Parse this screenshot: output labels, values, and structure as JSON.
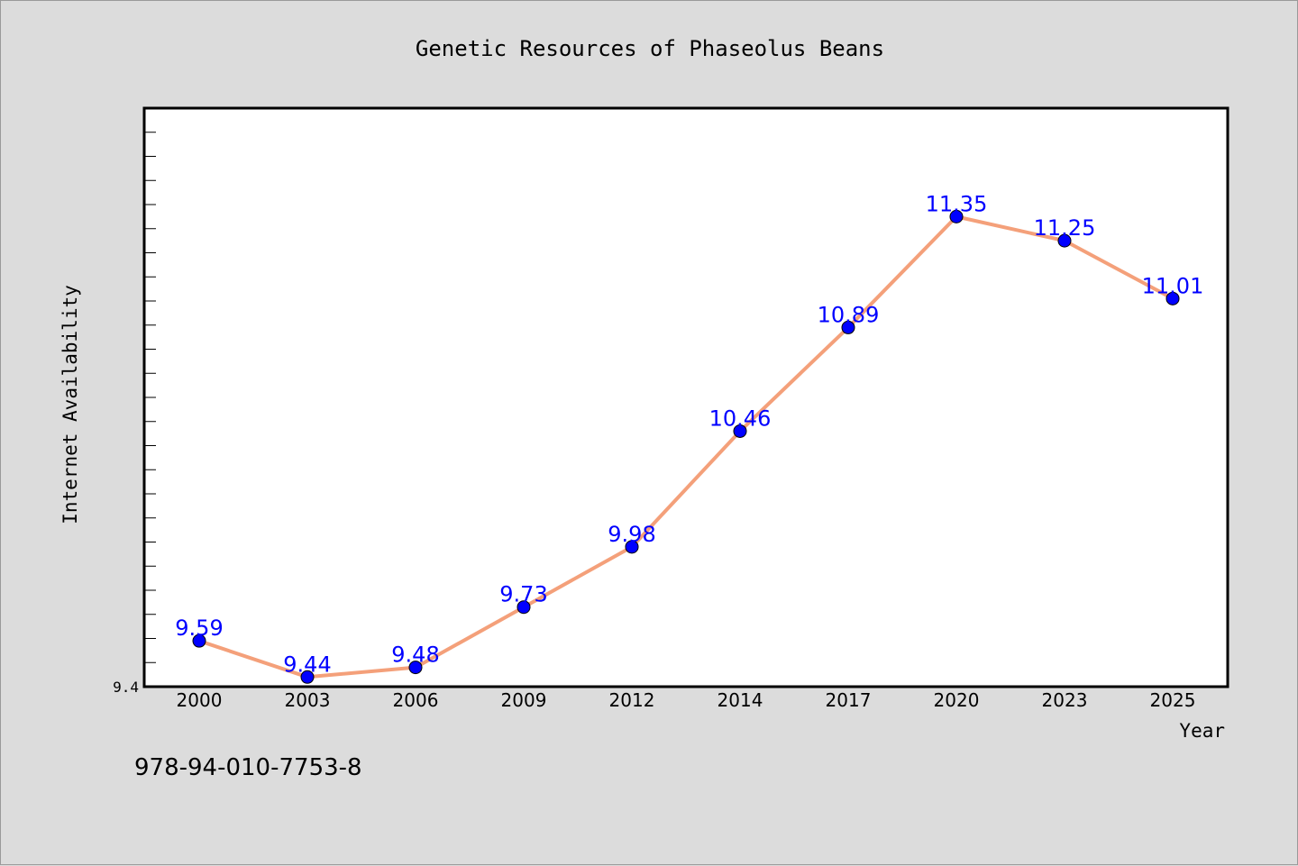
{
  "footer": {
    "isbn": "978-94-010-7753-8"
  },
  "colors": {
    "background": "#dcdcdc",
    "plot_background": "#ffffff",
    "line": "#f4a07a",
    "marker": "#0000ff",
    "data_label": "#0000ff"
  },
  "chart_data": {
    "type": "line",
    "title": "Genetic Resources of Phaseolus Beans",
    "xlabel": "Year",
    "ylabel": "Internet Availability",
    "categories": [
      "2000",
      "2003",
      "2006",
      "2009",
      "2012",
      "2014",
      "2017",
      "2020",
      "2023",
      "2025"
    ],
    "series": [
      {
        "values": [
          9.59,
          9.44,
          9.48,
          9.73,
          9.98,
          10.46,
          10.89,
          11.35,
          11.25,
          11.01
        ],
        "data_labels": [
          "9.59",
          "9.44",
          "9.48",
          "9.73",
          "9.98",
          "10.46",
          "10.89",
          "11.35",
          "11.25",
          "11.01"
        ]
      }
    ],
    "ylim": [
      9.4,
      11.8
    ],
    "y_tick_labels": [
      "9.4"
    ],
    "grid": false,
    "legend": "none"
  }
}
